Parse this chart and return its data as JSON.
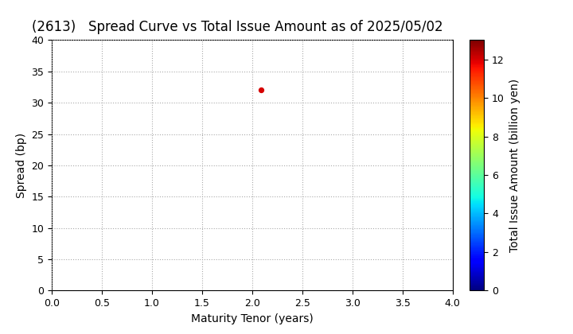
{
  "title": "(2613)   Spread Curve vs Total Issue Amount as of 2025/05/02",
  "xlabel": "Maturity Tenor (years)",
  "ylabel": "Spread (bp)",
  "colorbar_label": "Total Issue Amount (billion yen)",
  "xlim": [
    0.0,
    4.0
  ],
  "ylim": [
    0,
    40
  ],
  "xticks": [
    0.0,
    0.5,
    1.0,
    1.5,
    2.0,
    2.5,
    3.0,
    3.5,
    4.0
  ],
  "yticks": [
    0,
    5,
    10,
    15,
    20,
    25,
    30,
    35,
    40
  ],
  "colorbar_ticks": [
    0,
    2,
    4,
    6,
    8,
    10,
    12
  ],
  "colorbar_vmin": 0,
  "colorbar_vmax": 13,
  "scatter_x": [
    2.09
  ],
  "scatter_y": [
    32.0
  ],
  "scatter_color_value": [
    12.0
  ],
  "scatter_size": 18,
  "background_color": "#ffffff",
  "grid_color": "#aaaaaa",
  "title_fontsize": 12,
  "axis_fontsize": 10,
  "tick_fontsize": 9
}
